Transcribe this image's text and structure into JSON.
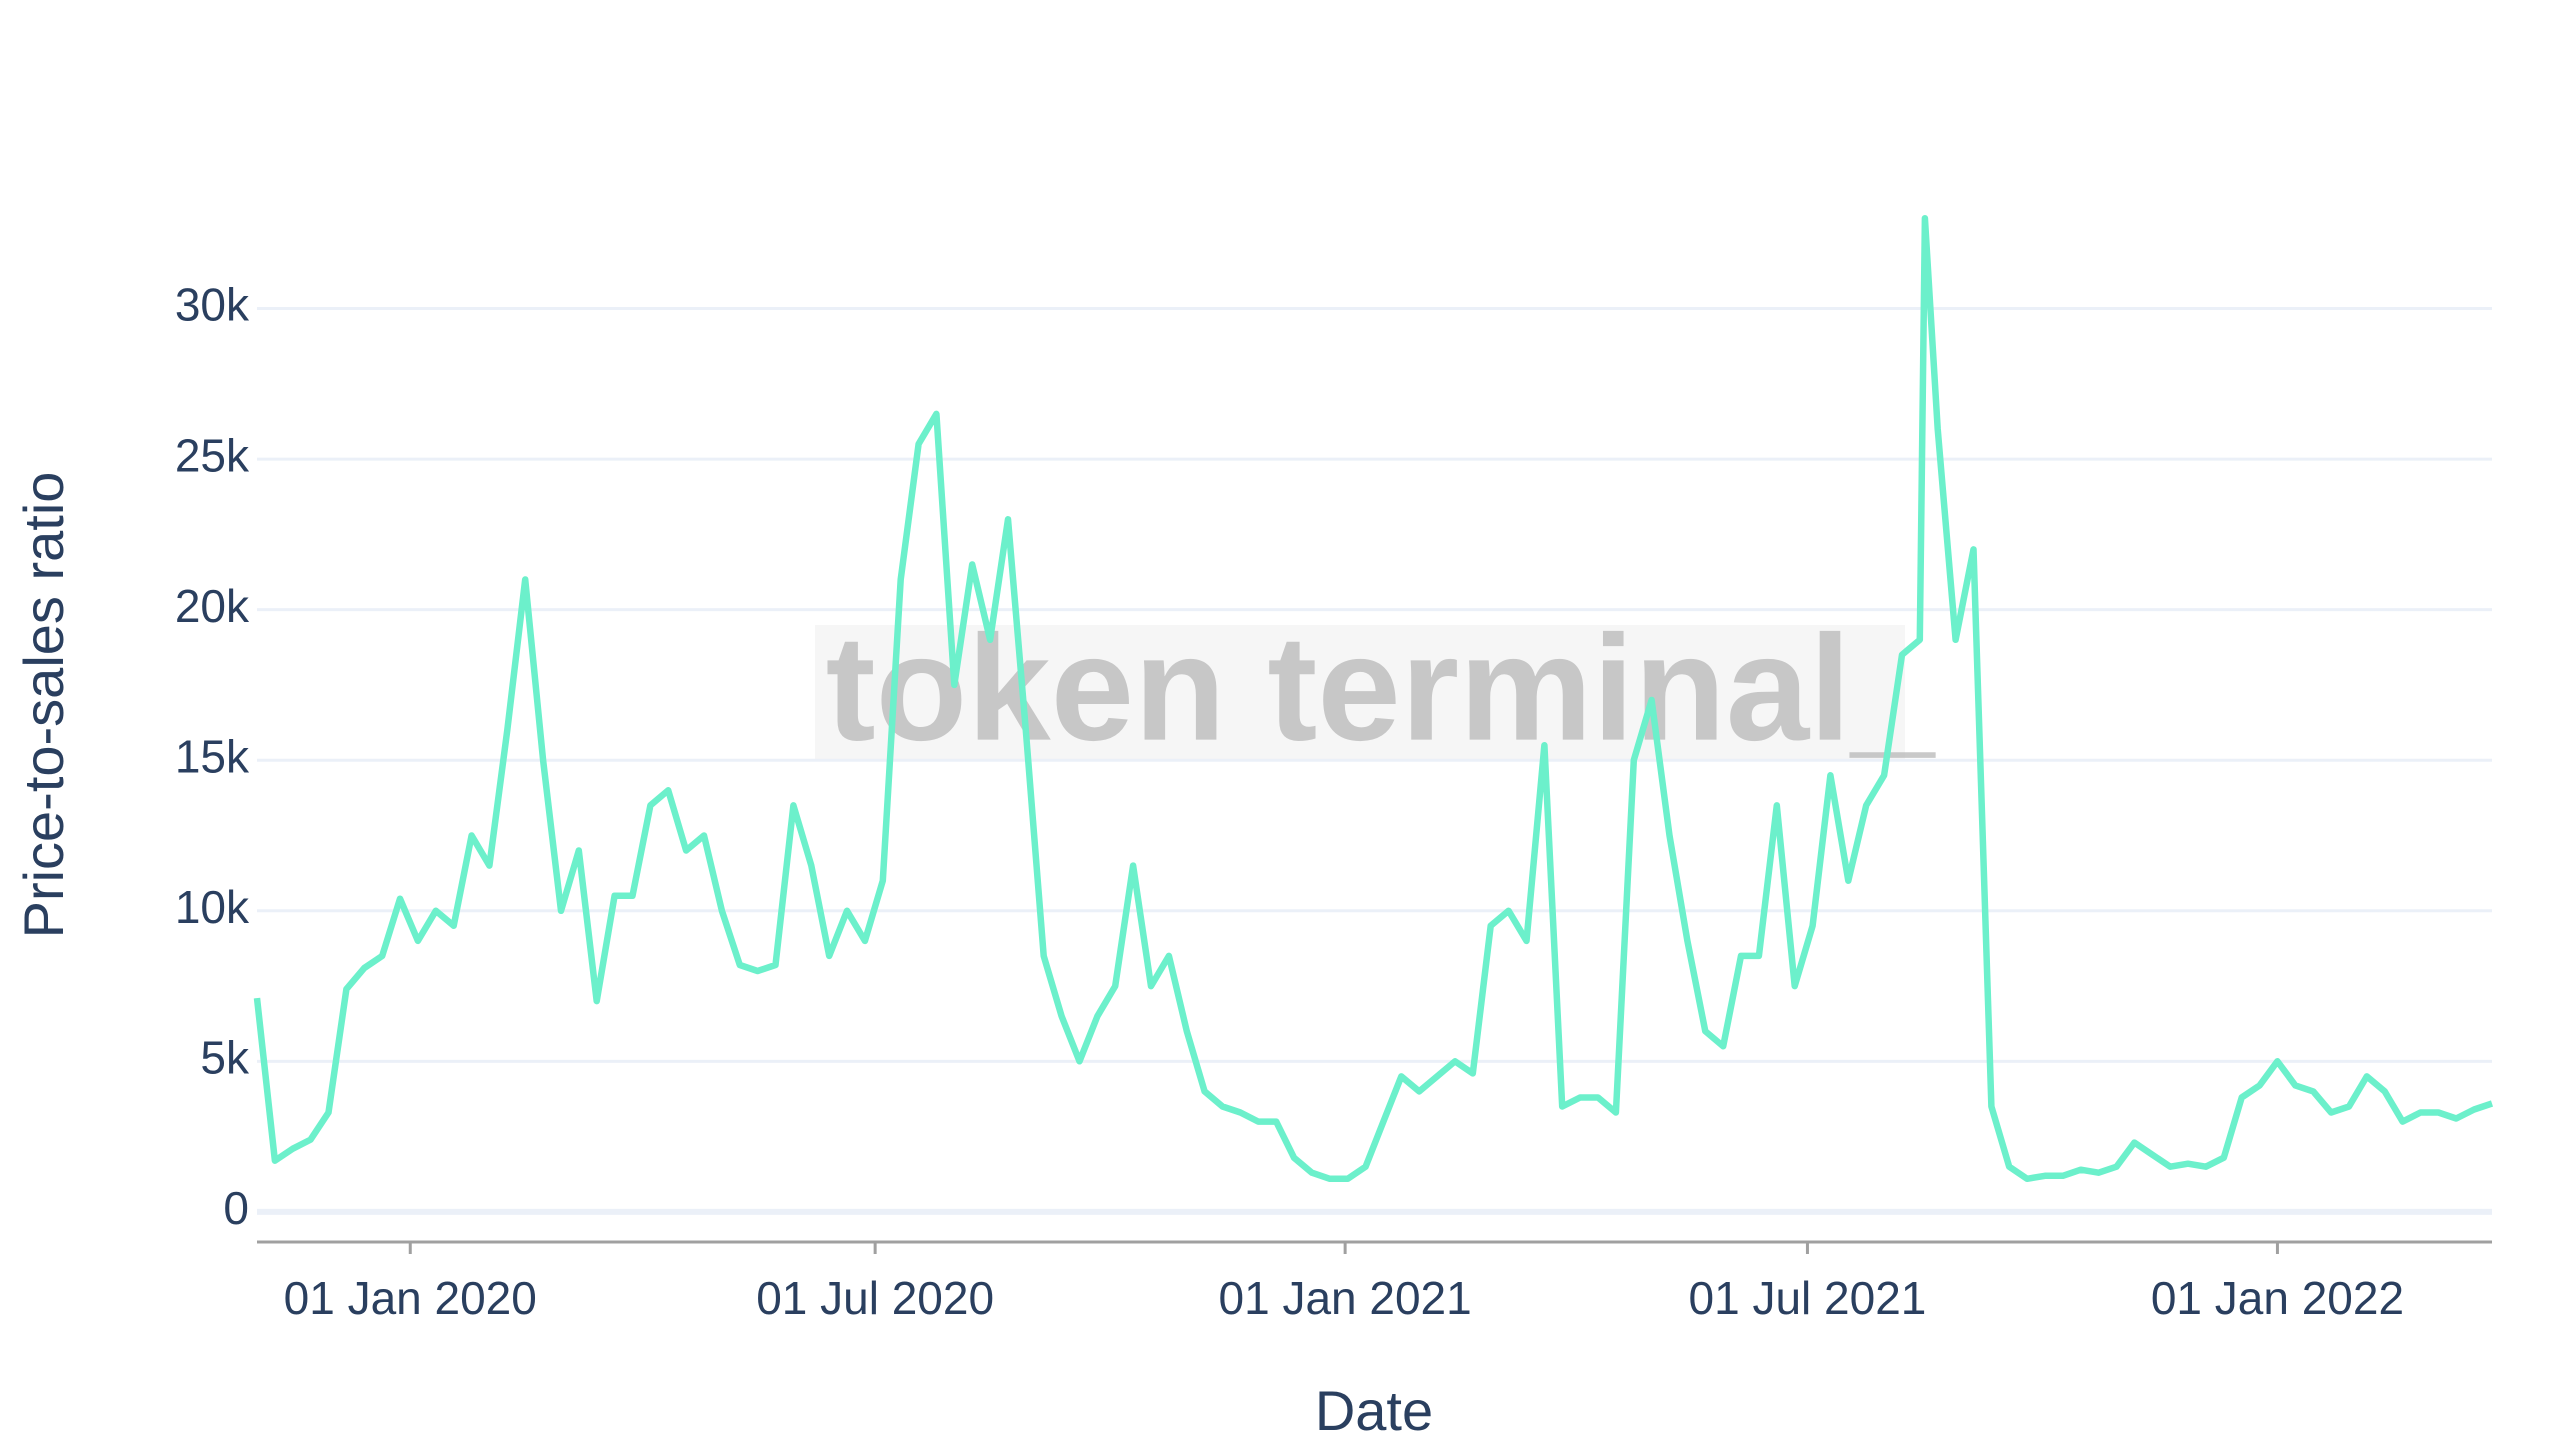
{
  "chart_data": {
    "type": "line",
    "watermark": "token terminal_",
    "x_label": "Date",
    "y_label": "Price-to-sales ratio",
    "x": [
      "2019-11-02",
      "2019-11-09",
      "2019-11-16",
      "2019-11-23",
      "2019-11-30",
      "2019-12-07",
      "2019-12-14",
      "2019-12-21",
      "2019-12-28",
      "2020-01-04",
      "2020-01-11",
      "2020-01-18",
      "2020-01-25",
      "2020-02-01",
      "2020-02-08",
      "2020-02-15",
      "2020-02-22",
      "2020-02-29",
      "2020-03-07",
      "2020-03-14",
      "2020-03-21",
      "2020-03-28",
      "2020-04-04",
      "2020-04-11",
      "2020-04-18",
      "2020-04-25",
      "2020-05-02",
      "2020-05-09",
      "2020-05-16",
      "2020-05-23",
      "2020-05-30",
      "2020-06-06",
      "2020-06-13",
      "2020-06-20",
      "2020-06-27",
      "2020-07-04",
      "2020-07-11",
      "2020-07-18",
      "2020-07-25",
      "2020-08-01",
      "2020-08-08",
      "2020-08-15",
      "2020-08-22",
      "2020-08-29",
      "2020-09-05",
      "2020-09-12",
      "2020-09-19",
      "2020-09-26",
      "2020-10-03",
      "2020-10-10",
      "2020-10-17",
      "2020-10-24",
      "2020-10-31",
      "2020-11-07",
      "2020-11-14",
      "2020-11-21",
      "2020-11-28",
      "2020-12-05",
      "2020-12-12",
      "2020-12-19",
      "2020-12-26",
      "2021-01-02",
      "2021-01-09",
      "2021-01-16",
      "2021-01-23",
      "2021-01-30",
      "2021-02-06",
      "2021-02-13",
      "2021-02-20",
      "2021-02-27",
      "2021-03-06",
      "2021-03-13",
      "2021-03-20",
      "2021-03-27",
      "2021-04-03",
      "2021-04-10",
      "2021-04-17",
      "2021-04-24",
      "2021-05-01",
      "2021-05-08",
      "2021-05-15",
      "2021-05-22",
      "2021-05-29",
      "2021-06-05",
      "2021-06-12",
      "2021-06-19",
      "2021-06-26",
      "2021-07-03",
      "2021-07-10",
      "2021-07-17",
      "2021-07-24",
      "2021-07-31",
      "2021-08-07",
      "2021-08-14",
      "2021-08-16",
      "2021-08-21",
      "2021-08-28",
      "2021-09-04",
      "2021-09-11",
      "2021-09-18",
      "2021-09-25",
      "2021-10-02",
      "2021-10-09",
      "2021-10-16",
      "2021-10-23",
      "2021-10-30",
      "2021-11-06",
      "2021-11-13",
      "2021-11-20",
      "2021-11-27",
      "2021-12-04",
      "2021-12-11",
      "2021-12-18",
      "2021-12-25",
      "2022-01-01",
      "2022-01-08",
      "2022-01-15",
      "2022-01-22",
      "2022-01-29",
      "2022-02-05",
      "2022-02-12",
      "2022-02-19",
      "2022-02-26",
      "2022-03-05",
      "2022-03-12",
      "2022-03-19",
      "2022-03-26"
    ],
    "series": [
      {
        "name": "Price-to-sales ratio",
        "color": "#6cf0cb",
        "values": [
          7100,
          1700,
          2100,
          2400,
          3300,
          7400,
          8100,
          8500,
          10400,
          9000,
          10000,
          9500,
          12500,
          11500,
          16000,
          21000,
          15000,
          10000,
          12000,
          7000,
          10500,
          10500,
          13500,
          14000,
          12000,
          12500,
          10000,
          8200,
          8000,
          8200,
          13500,
          11500,
          8500,
          10000,
          9000,
          11000,
          21000,
          25500,
          26500,
          17500,
          21500,
          19000,
          23000,
          16000,
          8500,
          6500,
          5000,
          6500,
          7500,
          11500,
          7500,
          8500,
          6000,
          4000,
          3500,
          3300,
          3000,
          3000,
          1800,
          1300,
          1100,
          1100,
          1500,
          3000,
          4500,
          4000,
          4500,
          5000,
          4600,
          9500,
          10000,
          9000,
          15500,
          3500,
          3800,
          3800,
          3300,
          15000,
          17000,
          12500,
          9000,
          6000,
          5500,
          8500,
          8500,
          13500,
          7500,
          9500,
          14500,
          11000,
          13500,
          14500,
          18500,
          19000,
          33000,
          26000,
          19000,
          22000,
          3500,
          1500,
          1100,
          1200,
          1200,
          1400,
          1300,
          1500,
          2300,
          1900,
          1500,
          1600,
          1500,
          1800,
          3800,
          4200,
          5000,
          4200,
          4000,
          3300,
          3500,
          4500,
          4000,
          3000,
          3300,
          3300,
          3100,
          3400,
          3600
        ]
      }
    ],
    "xlim": [
      "2019-11-02",
      "2022-03-26"
    ],
    "xticks": [
      {
        "value": "2020-01-01",
        "label": "01 Jan 2020"
      },
      {
        "value": "2020-07-01",
        "label": "01 Jul 2020"
      },
      {
        "value": "2021-01-01",
        "label": "01 Jan 2021"
      },
      {
        "value": "2021-07-01",
        "label": "01 Jul 2021"
      },
      {
        "value": "2022-01-01",
        "label": "01 Jan 2022"
      }
    ],
    "ylim": [
      -1000,
      34800
    ],
    "yticks": [
      0,
      {
        "value": 5000,
        "label": "5k"
      },
      {
        "value": 10000,
        "label": "10k"
      },
      {
        "value": 15000,
        "label": "15k"
      },
      {
        "value": 20000,
        "label": "20k"
      },
      {
        "value": 25000,
        "label": "25k"
      },
      {
        "value": 30000,
        "label": "30k"
      }
    ],
    "grid": true
  }
}
